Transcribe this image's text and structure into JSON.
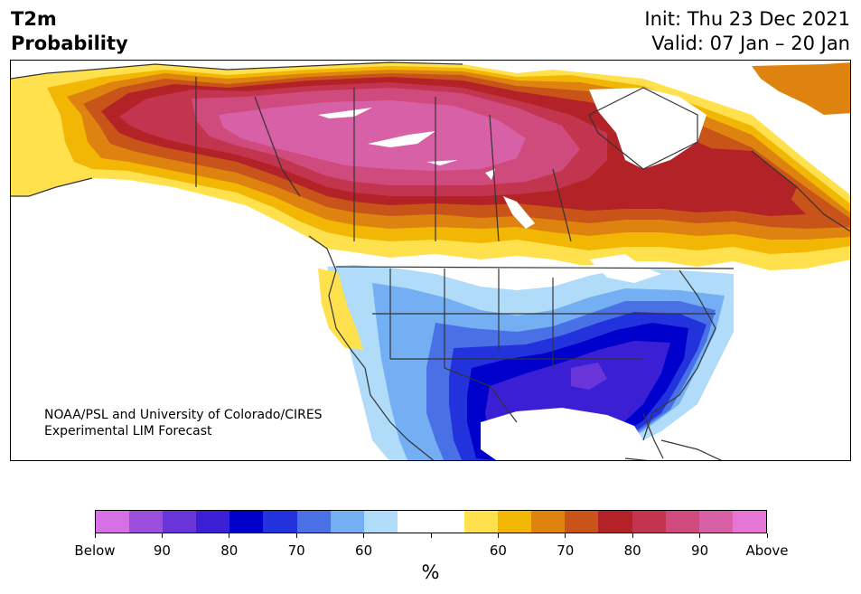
{
  "title": {
    "line1": "T2m",
    "line2": "Probability"
  },
  "subtitle": {
    "init": "Init: Thu 23 Dec 2021",
    "valid": "Valid: 07 Jan – 20 Jan"
  },
  "credit": {
    "line1": "NOAA/PSL and University of Colorado/CIRES",
    "line2": "Experimental LIM Forecast"
  },
  "colorbar": {
    "colors": [
      "#d770e6",
      "#9b4fdc",
      "#6a35d8",
      "#3a1fd4",
      "#0000cc",
      "#2233dd",
      "#4a70e6",
      "#73aff2",
      "#b0dcfa",
      "#ffffff",
      "#ffffff",
      "#ffe04d",
      "#f2b705",
      "#de8310",
      "#c8541a",
      "#b32227",
      "#c3344e",
      "#cf4a7d",
      "#d860a6",
      "#e575d6"
    ],
    "labels": [
      "Below",
      "90",
      "80",
      "70",
      "60",
      "",
      "60",
      "70",
      "80",
      "90",
      "Above"
    ],
    "unit": "%"
  },
  "map": {
    "region": "North America",
    "colors": {
      "above_95": "#d860a6",
      "above_90": "#cf4a7d",
      "above_85": "#c3344e",
      "above_80": "#b32227",
      "above_75": "#c8541a",
      "above_70": "#de8310",
      "above_65": "#f2b705",
      "above_60": "#ffe04d",
      "below_60": "#b0dcfa",
      "below_65": "#73aff2",
      "below_70": "#4a70e6",
      "below_75": "#2233dd",
      "below_80": "#0000cc",
      "below_85": "#3a1fd4",
      "below_90": "#6a35d8",
      "neutral": "#ffffff",
      "border": "#333333"
    }
  }
}
